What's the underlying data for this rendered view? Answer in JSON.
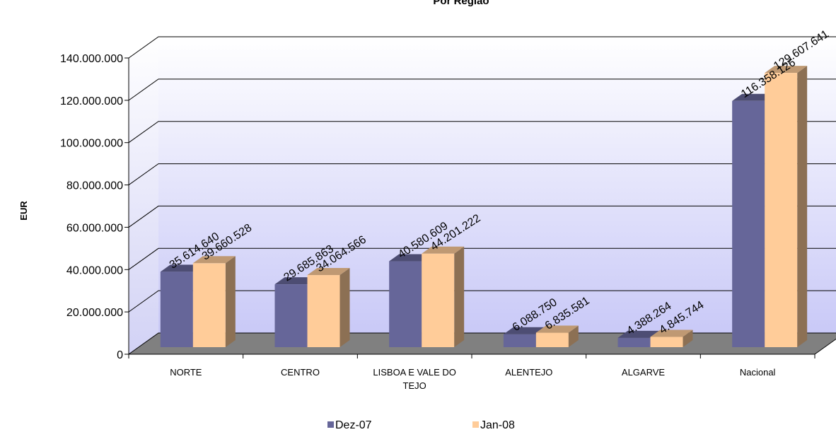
{
  "chart_data": {
    "type": "bar",
    "title": "Por Região",
    "xlabel": "",
    "ylabel": "EUR",
    "ylim": [
      0,
      140000000
    ],
    "yticks": [
      "0",
      "20.000.000",
      "40.000.000",
      "60.000.000",
      "80.000.000",
      "100.000.000",
      "120.000.000",
      "140.000.000"
    ],
    "categories": [
      "NORTE",
      "CENTRO",
      "LISBOA E VALE DO TEJO",
      "ALENTEJO",
      "ALGARVE",
      "Nacional"
    ],
    "series": [
      {
        "name": "Dez-07",
        "color": "#666699",
        "values": [
          35614640,
          29685863,
          40580609,
          6088750,
          4388264,
          116358126
        ],
        "labels": [
          "35.614.640",
          "29.685.863",
          "40.580.609",
          "6.088.750",
          "4.388.264",
          "116.358.126"
        ]
      },
      {
        "name": "Jan-08",
        "color": "#ffcc99",
        "values": [
          39660528,
          34064566,
          44201222,
          6835581,
          4845744,
          129607641
        ],
        "labels": [
          "39.660.528",
          "34.064.566",
          "44.201.222",
          "6.835.581",
          "4.845.744",
          "129.607.641"
        ]
      }
    ],
    "grid": true,
    "legend_position": "bottom"
  }
}
